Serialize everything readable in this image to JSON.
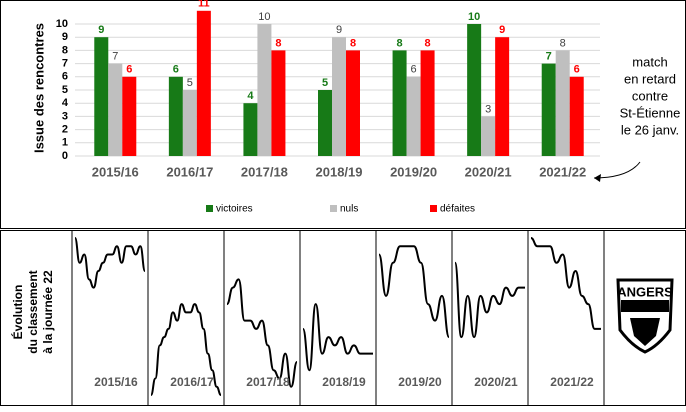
{
  "chart_data": [
    {
      "type": "bar",
      "ylabel": "Issue des rencontres",
      "categories": [
        "2015/16",
        "2016/17",
        "2017/18",
        "2018/19",
        "2019/20",
        "2020/21",
        "2021/22"
      ],
      "series": [
        {
          "name": "victoires",
          "color": "#177a17",
          "values": [
            9,
            6,
            4,
            5,
            8,
            10,
            7
          ]
        },
        {
          "name": "nuls",
          "color": "#bfbfbf",
          "values": [
            7,
            5,
            10,
            9,
            6,
            3,
            8
          ]
        },
        {
          "name": "défaites",
          "color": "#ff0000",
          "values": [
            6,
            11,
            8,
            8,
            8,
            9,
            6
          ]
        }
      ],
      "ylim": [
        0,
        11
      ],
      "yticks": [
        0,
        1,
        2,
        3,
        4,
        5,
        6,
        7,
        8,
        9,
        10
      ],
      "grid": true,
      "annotation": [
        "match",
        "en retard",
        "contre",
        "St-Étienne",
        "le 26 janv."
      ]
    },
    {
      "type": "line",
      "ylabel": [
        "Évolution",
        "du classement",
        "à la journée 22"
      ],
      "ylim": [
        20,
        1
      ],
      "series": [
        {
          "name": "2015/16",
          "color": "#000000",
          "values": [
            1,
            4,
            3,
            6,
            7,
            5,
            4,
            3,
            3,
            2,
            4,
            2,
            2,
            3,
            2,
            5
          ]
        },
        {
          "name": "2016/17",
          "color": "#000000",
          "values": [
            20,
            18,
            14,
            13,
            12,
            10,
            11,
            9,
            10,
            10,
            9,
            10,
            12,
            15,
            17,
            19,
            20
          ]
        },
        {
          "name": "2017/18",
          "color": "#000000",
          "values": [
            9,
            7,
            6,
            11,
            11,
            12,
            11,
            14,
            17,
            18,
            15,
            19,
            16
          ]
        },
        {
          "name": "2018/19",
          "color": "#000000",
          "values": [
            12,
            17,
            9,
            15,
            13,
            14,
            13,
            15,
            14,
            15,
            15,
            15
          ]
        },
        {
          "name": "2019/20",
          "color": "#000000",
          "values": [
            3,
            8,
            4,
            2,
            2,
            2,
            4,
            9,
            11,
            8,
            13
          ]
        },
        {
          "name": "2020/21",
          "color": "#000000",
          "values": [
            4,
            13,
            8,
            13,
            8,
            10,
            8,
            9,
            7,
            8,
            7,
            7
          ]
        },
        {
          "name": "2021/22",
          "color": "#000000",
          "values": [
            1,
            2,
            2,
            2,
            4,
            3,
            7,
            5,
            8,
            9,
            12,
            12
          ]
        }
      ]
    }
  ],
  "logo": {
    "text": "ANGERS"
  }
}
